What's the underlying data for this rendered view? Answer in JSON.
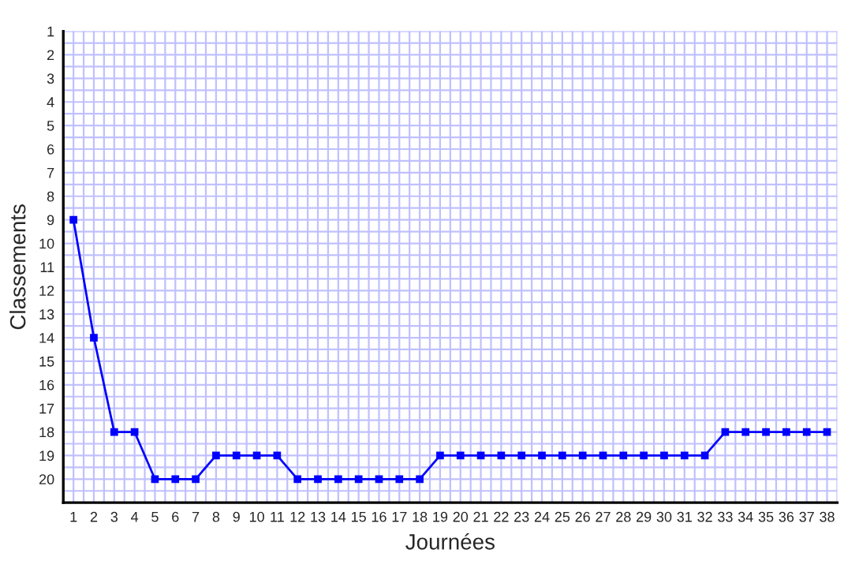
{
  "chart_data": {
    "type": "line",
    "xlabel": "Journées",
    "ylabel": "Classements",
    "x": [
      1,
      2,
      3,
      4,
      5,
      6,
      7,
      8,
      9,
      10,
      11,
      12,
      13,
      14,
      15,
      16,
      17,
      18,
      19,
      20,
      21,
      22,
      23,
      24,
      25,
      26,
      27,
      28,
      29,
      30,
      31,
      32,
      33,
      34,
      35,
      36,
      37,
      38
    ],
    "series": [
      {
        "color": "#0000ff",
        "values": [
          9,
          14,
          18,
          18,
          20,
          20,
          20,
          19,
          19,
          19,
          19,
          20,
          20,
          20,
          20,
          20,
          20,
          20,
          19,
          19,
          19,
          19,
          19,
          19,
          19,
          19,
          19,
          19,
          19,
          19,
          19,
          19,
          18,
          18,
          18,
          18,
          18,
          18
        ]
      }
    ],
    "xlim": [
      0.5,
      38.5
    ],
    "xticks": [
      1,
      2,
      3,
      4,
      5,
      6,
      7,
      8,
      9,
      10,
      11,
      12,
      13,
      14,
      15,
      16,
      17,
      18,
      19,
      20,
      21,
      22,
      23,
      24,
      25,
      26,
      27,
      28,
      29,
      30,
      31,
      32,
      33,
      34,
      35,
      36,
      37,
      38
    ],
    "ylim": [
      21,
      1
    ],
    "yticks": [
      1,
      2,
      3,
      4,
      5,
      6,
      7,
      8,
      9,
      10,
      11,
      12,
      13,
      14,
      15,
      16,
      17,
      18,
      19,
      20
    ],
    "grid": true,
    "marker": "square",
    "line_style": "solid",
    "legend": false
  }
}
